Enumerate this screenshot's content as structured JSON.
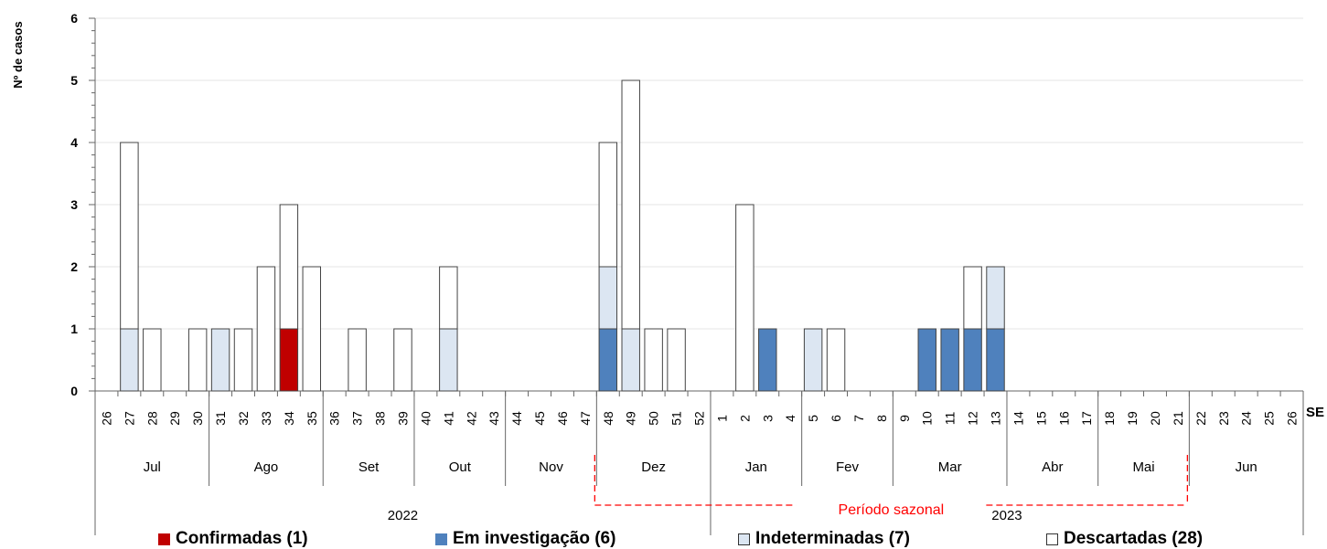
{
  "chart_data": {
    "type": "bar",
    "stacked": true,
    "ylabel": "Nº de casos",
    "xlabel": "SE",
    "ylim": [
      0,
      6
    ],
    "yticks": [
      0,
      1,
      2,
      3,
      4,
      5,
      6
    ],
    "grid": true,
    "categories": [
      "26",
      "27",
      "28",
      "29",
      "30",
      "31",
      "32",
      "33",
      "34",
      "35",
      "36",
      "37",
      "38",
      "39",
      "40",
      "41",
      "42",
      "43",
      "44",
      "45",
      "46",
      "47",
      "48",
      "49",
      "50",
      "51",
      "52",
      "1",
      "2",
      "3",
      "4",
      "5",
      "6",
      "7",
      "8",
      "9",
      "10",
      "11",
      "12",
      "13",
      "14",
      "15",
      "16",
      "17",
      "18",
      "19",
      "20",
      "21",
      "22",
      "23",
      "24",
      "25",
      "26"
    ],
    "months": [
      {
        "label": "Jul",
        "from": 0,
        "to": 4
      },
      {
        "label": "Ago",
        "from": 5,
        "to": 9
      },
      {
        "label": "Set",
        "from": 10,
        "to": 13
      },
      {
        "label": "Out",
        "from": 14,
        "to": 17
      },
      {
        "label": "Nov",
        "from": 18,
        "to": 21
      },
      {
        "label": "Dez",
        "from": 22,
        "to": 26
      },
      {
        "label": "Jan",
        "from": 27,
        "to": 30
      },
      {
        "label": "Fev",
        "from": 31,
        "to": 34
      },
      {
        "label": "Mar",
        "from": 35,
        "to": 39
      },
      {
        "label": "Abr",
        "from": 40,
        "to": 43
      },
      {
        "label": "Mai",
        "from": 44,
        "to": 47
      },
      {
        "label": "Jun",
        "from": 48,
        "to": 52
      }
    ],
    "years": [
      {
        "label": "2022",
        "from": 0,
        "to": 26
      },
      {
        "label": "2023",
        "from": 27,
        "to": 52
      }
    ],
    "seasonal_period": {
      "label": "Período sazonal",
      "from": 22,
      "to": 47
    },
    "series": [
      {
        "name": "Confirmadas (1)",
        "color": "#c00000",
        "values": [
          0,
          0,
          0,
          0,
          0,
          0,
          0,
          0,
          1,
          0,
          0,
          0,
          0,
          0,
          0,
          0,
          0,
          0,
          0,
          0,
          0,
          0,
          0,
          0,
          0,
          0,
          0,
          0,
          0,
          0,
          0,
          0,
          0,
          0,
          0,
          0,
          0,
          0,
          0,
          0,
          0,
          0,
          0,
          0,
          0,
          0,
          0,
          0,
          0,
          0,
          0,
          0,
          0
        ]
      },
      {
        "name": "Em investigação (6)",
        "color": "#4f81bd",
        "values": [
          0,
          0,
          0,
          0,
          0,
          0,
          0,
          0,
          0,
          0,
          0,
          0,
          0,
          0,
          0,
          0,
          0,
          0,
          0,
          0,
          0,
          0,
          1,
          0,
          0,
          0,
          0,
          0,
          0,
          1,
          0,
          0,
          0,
          0,
          0,
          0,
          1,
          1,
          1,
          1,
          0,
          0,
          0,
          0,
          0,
          0,
          0,
          0,
          0,
          0,
          0,
          0,
          0
        ]
      },
      {
        "name": "Indeterminadas (7)",
        "color": "#dce6f2",
        "values": [
          0,
          1,
          0,
          0,
          0,
          1,
          0,
          0,
          0,
          0,
          0,
          0,
          0,
          0,
          0,
          1,
          0,
          0,
          0,
          0,
          0,
          0,
          1,
          1,
          0,
          0,
          0,
          0,
          0,
          0,
          0,
          1,
          0,
          0,
          0,
          0,
          0,
          0,
          0,
          1,
          0,
          0,
          0,
          0,
          0,
          0,
          0,
          0,
          0,
          0,
          0,
          0,
          0
        ]
      },
      {
        "name": "Descartadas (28)",
        "color": "#ffffff",
        "values": [
          0,
          3,
          1,
          0,
          1,
          0,
          1,
          2,
          2,
          2,
          0,
          1,
          0,
          1,
          0,
          1,
          0,
          0,
          0,
          0,
          0,
          0,
          2,
          4,
          1,
          1,
          0,
          0,
          3,
          0,
          0,
          0,
          1,
          0,
          0,
          0,
          0,
          0,
          1,
          0,
          0,
          0,
          0,
          0,
          0,
          0,
          0,
          0,
          0,
          0,
          0,
          0,
          0
        ]
      }
    ]
  }
}
